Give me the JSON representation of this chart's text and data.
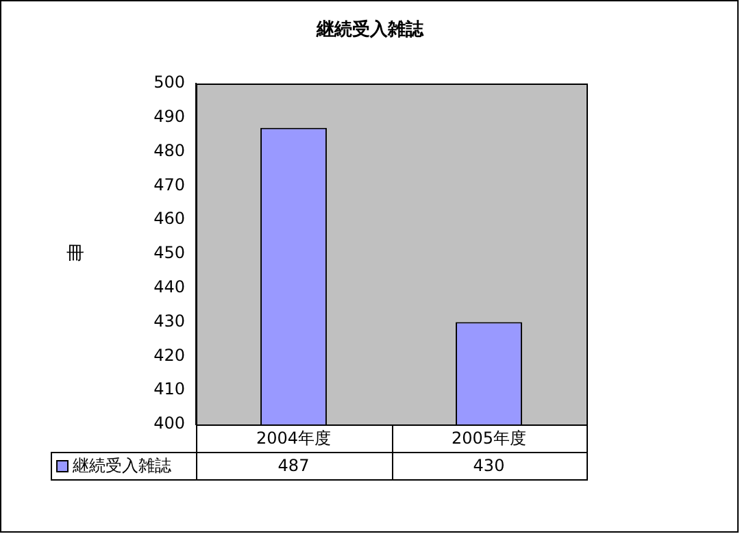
{
  "chart_data": {
    "type": "bar",
    "title": "継続受入雑誌",
    "ylabel": "冊",
    "categories": [
      "2004年度",
      "2005年度"
    ],
    "series": [
      {
        "name": "継続受入雑誌",
        "color": "#9999ff",
        "values": [
          487,
          430
        ]
      }
    ],
    "ylim": [
      400,
      500
    ],
    "yticks": [
      400,
      410,
      420,
      430,
      440,
      450,
      460,
      470,
      480,
      490,
      500
    ],
    "data_labels": true
  }
}
